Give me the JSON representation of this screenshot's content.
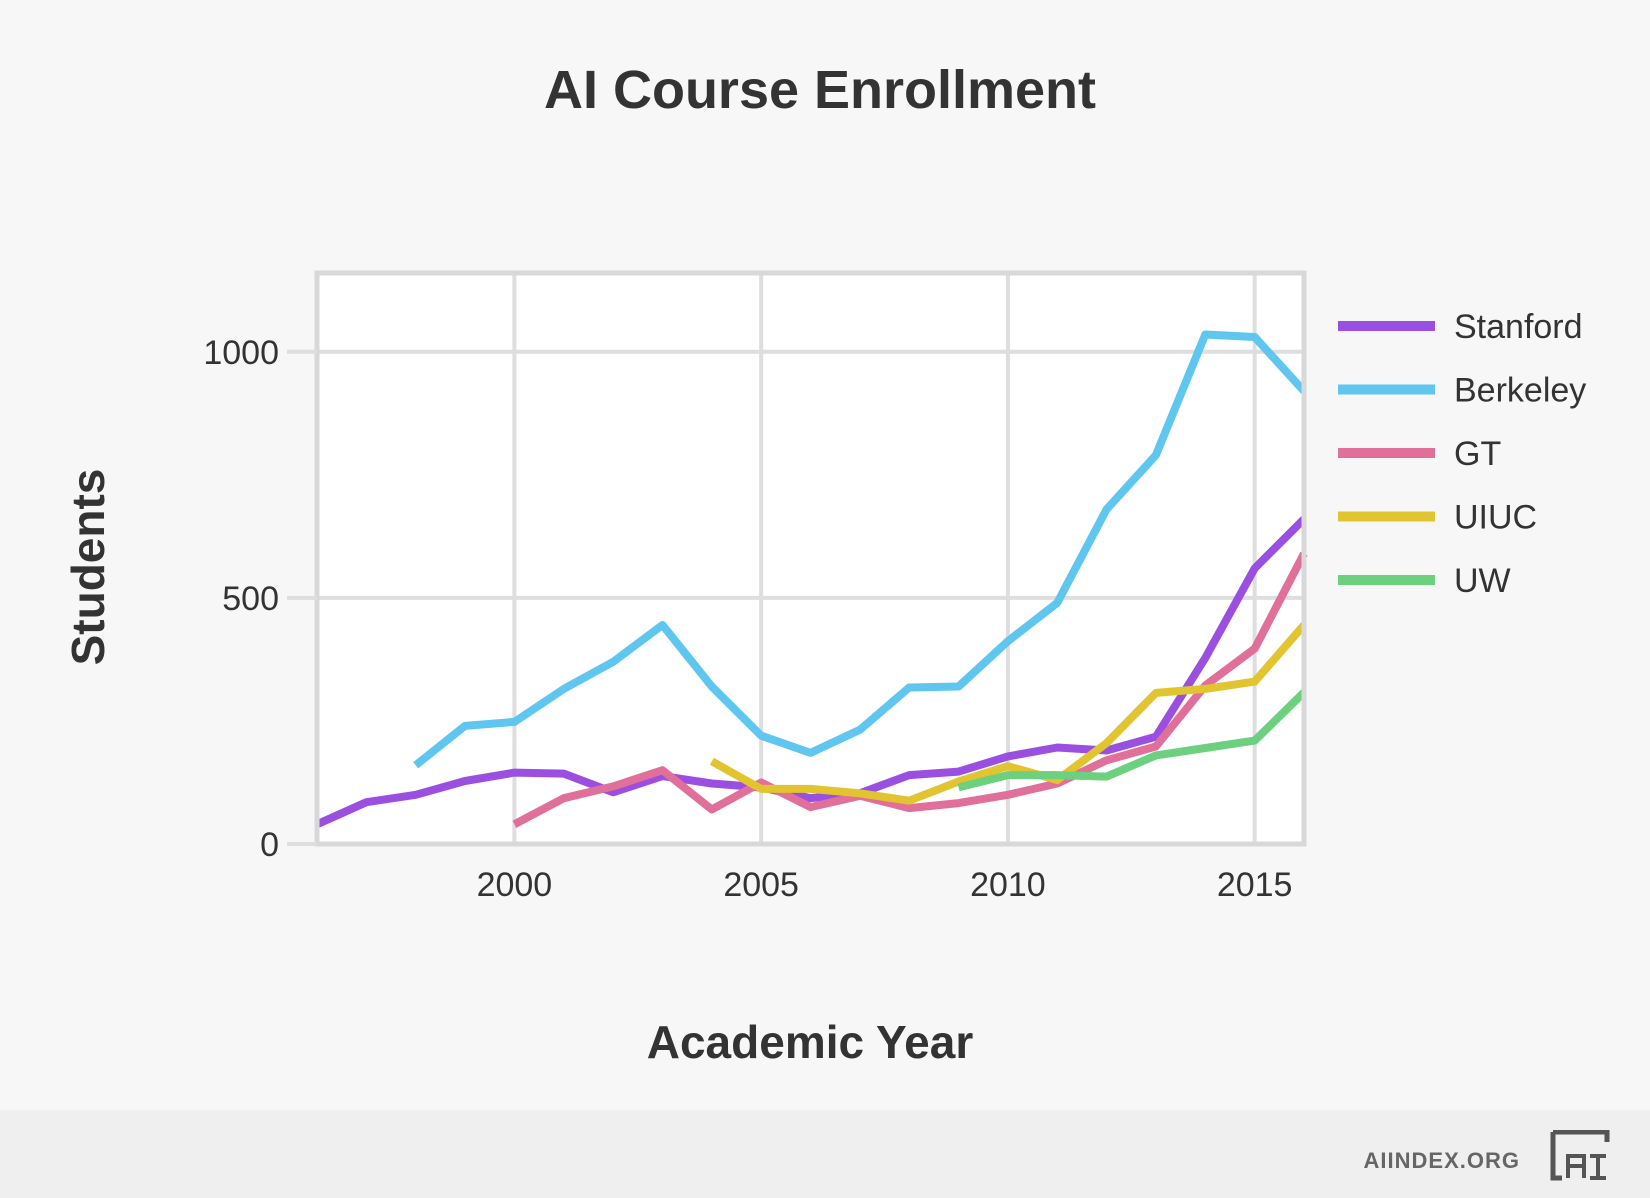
{
  "chart_data": {
    "type": "line",
    "title": "AI Course Enrollment",
    "xlabel": "Academic Year",
    "ylabel": "Students",
    "xlim": [
      1996,
      2016
    ],
    "ylim": [
      0,
      1160
    ],
    "xticks": [
      2000,
      2005,
      2010,
      2015
    ],
    "yticks": [
      0,
      500,
      1000
    ],
    "grid": true,
    "legend_position": "right",
    "series": [
      {
        "name": "Stanford",
        "color": "#9b4fe0",
        "x": [
          1996,
          1997,
          1998,
          1999,
          2000,
          2001,
          2002,
          2003,
          2004,
          2005,
          2006,
          2007,
          2008,
          2009,
          2010,
          2011,
          2012,
          2013,
          2014,
          2015,
          2016
        ],
        "y": [
          40,
          85,
          100,
          128,
          145,
          143,
          105,
          138,
          123,
          115,
          93,
          103,
          140,
          147,
          178,
          196,
          190,
          218,
          378,
          560,
          660
        ]
      },
      {
        "name": "Berkeley",
        "color": "#5fc6ef",
        "x": [
          1998,
          1999,
          2000,
          2001,
          2002,
          2003,
          2004,
          2005,
          2006,
          2007,
          2008,
          2009,
          2010,
          2011,
          2012,
          2013,
          2014,
          2015,
          2016
        ],
        "y": [
          160,
          240,
          248,
          315,
          370,
          445,
          320,
          220,
          185,
          232,
          318,
          320,
          412,
          490,
          680,
          790,
          1035,
          1030,
          920
        ]
      },
      {
        "name": "GT",
        "color": "#e0709a",
        "x": [
          2000,
          2001,
          2002,
          2003,
          2004,
          2005,
          2006,
          2007,
          2008,
          2009,
          2010,
          2011,
          2012,
          2013,
          2014,
          2015,
          2016
        ],
        "y": [
          40,
          93,
          117,
          150,
          70,
          125,
          75,
          98,
          73,
          83,
          100,
          123,
          170,
          198,
          322,
          397,
          590
        ]
      },
      {
        "name": "UIUC",
        "color": "#e2c431",
        "x": [
          2004,
          2005,
          2006,
          2007,
          2008,
          2009,
          2010,
          2011,
          2012,
          2013,
          2014,
          2015,
          2016
        ],
        "y": [
          168,
          112,
          112,
          103,
          88,
          127,
          158,
          130,
          205,
          307,
          315,
          330,
          445
        ]
      },
      {
        "name": "UW",
        "color": "#6cd07f",
        "x": [
          2009,
          2010,
          2011,
          2012,
          2013,
          2014,
          2015,
          2016
        ],
        "y": [
          115,
          140,
          140,
          137,
          180,
          195,
          210,
          308
        ]
      }
    ]
  },
  "footer": {
    "site": "AIINDEX.ORG",
    "logo_icon": "ai-index-logo-icon"
  }
}
